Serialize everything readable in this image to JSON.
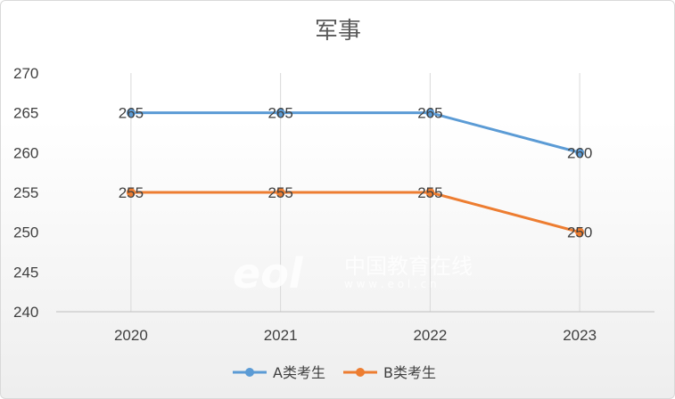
{
  "chart_data": {
    "type": "line",
    "title": "军事",
    "categories": [
      "2020",
      "2021",
      "2022",
      "2023"
    ],
    "series": [
      {
        "name": "A类考生",
        "values": [
          265,
          265,
          265,
          260
        ],
        "color": "#5b9bd5"
      },
      {
        "name": "B类考生",
        "values": [
          255,
          255,
          255,
          250
        ],
        "color": "#ed7d31"
      }
    ],
    "ylim": [
      240,
      270
    ],
    "yticks": [
      240,
      245,
      250,
      255,
      260,
      265,
      270
    ],
    "grid": "vertical",
    "legend": "bottom",
    "data_labels": true
  },
  "watermark": {
    "logo_text": "eol",
    "cn_text": "中国教育在线",
    "url_text": "w w w . e o l . c n"
  }
}
